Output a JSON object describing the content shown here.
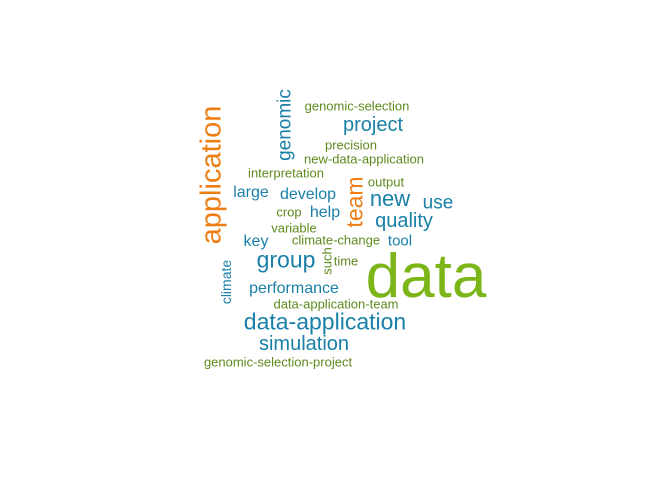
{
  "colors": {
    "green": "#7cb518",
    "orange": "#ee7d14",
    "teal": "#1a80a8",
    "olive": "#5f8a1e"
  },
  "words": [
    {
      "text": "data",
      "color": "green"
    },
    {
      "text": "application",
      "color": "orange"
    },
    {
      "text": "team",
      "color": "orange"
    },
    {
      "text": "data-application",
      "color": "teal"
    },
    {
      "text": "group",
      "color": "teal"
    },
    {
      "text": "simulation",
      "color": "teal"
    },
    {
      "text": "new",
      "color": "teal"
    },
    {
      "text": "project",
      "color": "teal"
    },
    {
      "text": "quality",
      "color": "teal"
    },
    {
      "text": "genomic",
      "color": "teal"
    },
    {
      "text": "use",
      "color": "teal"
    },
    {
      "text": "develop",
      "color": "teal"
    },
    {
      "text": "performance",
      "color": "teal"
    },
    {
      "text": "large",
      "color": "teal"
    },
    {
      "text": "help",
      "color": "teal"
    },
    {
      "text": "key",
      "color": "teal"
    },
    {
      "text": "tool",
      "color": "teal"
    },
    {
      "text": "climate",
      "color": "teal"
    },
    {
      "text": "genomic-selection",
      "color": "olive"
    },
    {
      "text": "precision",
      "color": "olive"
    },
    {
      "text": "new-data-application",
      "color": "olive"
    },
    {
      "text": "interpretation",
      "color": "olive"
    },
    {
      "text": "output",
      "color": "olive"
    },
    {
      "text": "crop",
      "color": "olive"
    },
    {
      "text": "variable",
      "color": "olive"
    },
    {
      "text": "climate-change",
      "color": "olive"
    },
    {
      "text": "such",
      "color": "olive"
    },
    {
      "text": "time",
      "color": "olive"
    },
    {
      "text": "data-application-team",
      "color": "olive"
    },
    {
      "text": "genomic-selection-project",
      "color": "olive"
    }
  ]
}
